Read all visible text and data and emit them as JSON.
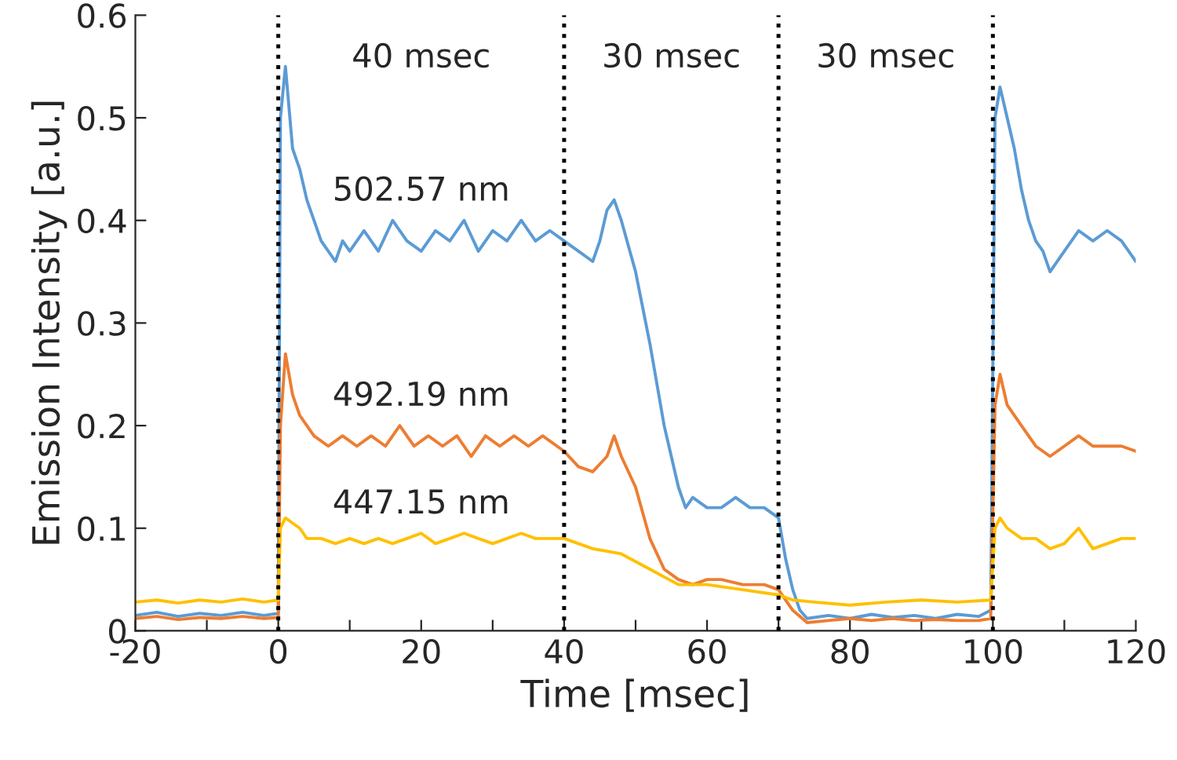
{
  "chart_data": {
    "type": "line",
    "xlabel": "Time [msec]",
    "ylabel": "Emission Intensity [a.u.]",
    "xlim": [
      -20,
      120
    ],
    "ylim": [
      0,
      0.6
    ],
    "xticks": [
      -20,
      {
        "value": -10,
        "label": null
      },
      0,
      {
        "value": 10,
        "label": null
      },
      20,
      {
        "value": 30,
        "label": null
      },
      40,
      {
        "value": 50,
        "label": null
      },
      60,
      {
        "value": 70,
        "label": null
      },
      80,
      {
        "value": 90,
        "label": null
      },
      100,
      {
        "value": 110,
        "label": null
      },
      120
    ],
    "yticks": [
      0,
      0.1,
      0.2,
      0.3,
      0.4,
      0.5,
      0.6
    ],
    "grid": false,
    "legend": false,
    "line_style": "solid",
    "marker": "none",
    "ref_lines": [
      {
        "axis": "x",
        "value": 0,
        "color": "#000000",
        "line_style": "dotted"
      },
      {
        "axis": "x",
        "value": 40,
        "color": "#000000",
        "line_style": "dotted"
      },
      {
        "axis": "x",
        "value": 70,
        "color": "#000000",
        "line_style": "dotted"
      },
      {
        "axis": "x",
        "value": 100,
        "color": "#000000",
        "line_style": "dotted"
      }
    ],
    "annotations": [
      "40 msec",
      "30 msec",
      "30 msec"
    ],
    "series": [
      {
        "name": "502.57 nm",
        "color": "#5b9bd5",
        "x": [
          -20,
          -17,
          -14,
          -11,
          -8,
          -5,
          -2,
          0,
          0.3,
          1,
          2,
          3,
          4,
          5,
          6,
          7,
          8,
          9,
          10,
          12,
          14,
          16,
          18,
          20,
          22,
          24,
          26,
          28,
          30,
          32,
          34,
          36,
          38,
          40,
          42,
          44,
          45,
          46,
          47,
          48,
          50,
          52,
          54,
          56,
          57,
          58,
          60,
          62,
          64,
          66,
          68,
          70,
          71,
          72,
          73,
          74,
          77,
          80,
          83,
          86,
          89,
          92,
          95,
          98,
          99.7,
          100.3,
          101,
          102,
          103,
          104,
          105,
          106,
          107,
          108,
          110,
          112,
          114,
          116,
          118,
          120
        ],
        "values": [
          0.015,
          0.018,
          0.014,
          0.017,
          0.015,
          0.018,
          0.015,
          0.017,
          0.5,
          0.55,
          0.47,
          0.45,
          0.42,
          0.4,
          0.38,
          0.37,
          0.36,
          0.38,
          0.37,
          0.39,
          0.37,
          0.4,
          0.38,
          0.37,
          0.39,
          0.38,
          0.4,
          0.37,
          0.39,
          0.38,
          0.4,
          0.38,
          0.39,
          0.38,
          0.37,
          0.36,
          0.38,
          0.41,
          0.42,
          0.4,
          0.35,
          0.28,
          0.2,
          0.14,
          0.12,
          0.13,
          0.12,
          0.12,
          0.13,
          0.12,
          0.12,
          0.11,
          0.07,
          0.04,
          0.02,
          0.012,
          0.015,
          0.012,
          0.016,
          0.013,
          0.015,
          0.012,
          0.016,
          0.014,
          0.02,
          0.5,
          0.53,
          0.5,
          0.47,
          0.43,
          0.4,
          0.38,
          0.37,
          0.35,
          0.37,
          0.39,
          0.38,
          0.39,
          0.38,
          0.36
        ]
      },
      {
        "name": "492.19 nm",
        "color": "#ed7d31",
        "x": [
          -20,
          -17,
          -14,
          -11,
          -8,
          -5,
          -2,
          0,
          0.3,
          1,
          2,
          3,
          4,
          5,
          7,
          9,
          11,
          13,
          15,
          17,
          19,
          21,
          23,
          25,
          27,
          29,
          31,
          33,
          35,
          37,
          40,
          42,
          44,
          46,
          47,
          48,
          50,
          52,
          54,
          56,
          58,
          60,
          62,
          65,
          68,
          70,
          72,
          74,
          77,
          80,
          83,
          86,
          89,
          92,
          95,
          98,
          99.7,
          100.3,
          101,
          102,
          104,
          106,
          108,
          110,
          112,
          114,
          116,
          118,
          120
        ],
        "values": [
          0.012,
          0.014,
          0.011,
          0.013,
          0.012,
          0.014,
          0.012,
          0.013,
          0.2,
          0.27,
          0.23,
          0.21,
          0.2,
          0.19,
          0.18,
          0.19,
          0.18,
          0.19,
          0.18,
          0.2,
          0.18,
          0.19,
          0.18,
          0.19,
          0.17,
          0.19,
          0.18,
          0.19,
          0.18,
          0.19,
          0.175,
          0.16,
          0.155,
          0.17,
          0.19,
          0.17,
          0.14,
          0.09,
          0.06,
          0.05,
          0.045,
          0.05,
          0.05,
          0.045,
          0.045,
          0.04,
          0.02,
          0.008,
          0.01,
          0.012,
          0.01,
          0.012,
          0.01,
          0.011,
          0.01,
          0.01,
          0.012,
          0.22,
          0.25,
          0.22,
          0.2,
          0.18,
          0.17,
          0.18,
          0.19,
          0.18,
          0.18,
          0.18,
          0.175
        ]
      },
      {
        "name": "447.15 nm",
        "color": "#ffc000",
        "x": [
          -20,
          -17,
          -14,
          -11,
          -8,
          -5,
          -2,
          0,
          0.3,
          1,
          2,
          3,
          4,
          6,
          8,
          10,
          12,
          14,
          16,
          18,
          20,
          22,
          24,
          26,
          28,
          30,
          32,
          34,
          36,
          38,
          40,
          44,
          48,
          52,
          56,
          60,
          65,
          70,
          72,
          75,
          80,
          85,
          90,
          95,
          99.7,
          100.3,
          101,
          102,
          104,
          106,
          108,
          110,
          112,
          114,
          116,
          118,
          120
        ],
        "values": [
          0.028,
          0.03,
          0.027,
          0.03,
          0.028,
          0.031,
          0.028,
          0.03,
          0.1,
          0.11,
          0.105,
          0.1,
          0.09,
          0.09,
          0.085,
          0.09,
          0.085,
          0.09,
          0.085,
          0.09,
          0.095,
          0.085,
          0.09,
          0.095,
          0.09,
          0.085,
          0.09,
          0.095,
          0.09,
          0.09,
          0.09,
          0.08,
          0.075,
          0.06,
          0.045,
          0.045,
          0.04,
          0.035,
          0.03,
          0.028,
          0.025,
          0.028,
          0.03,
          0.028,
          0.03,
          0.1,
          0.11,
          0.1,
          0.09,
          0.09,
          0.08,
          0.085,
          0.1,
          0.08,
          0.085,
          0.09,
          0.09
        ]
      }
    ]
  }
}
